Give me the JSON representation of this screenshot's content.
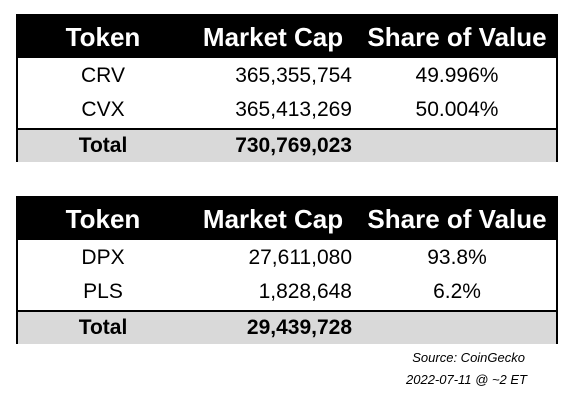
{
  "chart_data": [
    {
      "type": "table",
      "columns": [
        "Token",
        "Market Cap",
        "Share of Value"
      ],
      "rows": [
        [
          "CRV",
          "365,355,754",
          "49.996%"
        ],
        [
          "CVX",
          "365,413,269",
          "50.004%"
        ]
      ],
      "total": [
        "Total",
        "730,769,023",
        ""
      ]
    },
    {
      "type": "table",
      "columns": [
        "Token",
        "Market Cap",
        "Share of Value"
      ],
      "rows": [
        [
          "DPX",
          "27,611,080",
          "93.8%"
        ],
        [
          "PLS",
          "1,828,648",
          "6.2%"
        ]
      ],
      "total": [
        "Total",
        "29,439,728",
        ""
      ]
    }
  ],
  "footer": {
    "source": "Source: CoinGecko",
    "date": "2022-07-11 @ ~2 ET"
  },
  "colors": {
    "header_bg": "#000000",
    "header_text": "#ffffff",
    "total_bg": "#d9d9d9"
  }
}
